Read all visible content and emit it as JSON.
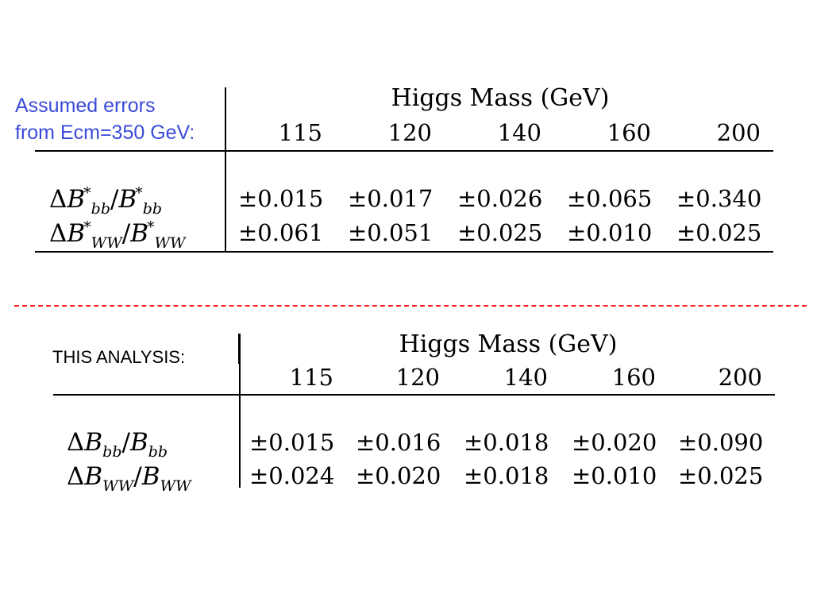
{
  "table1": {
    "caption_line1": "Assumed errors",
    "caption_line2": "from Ecm=350 GeV:",
    "caption_color": "#3b4bd8",
    "title": "Higgs Mass (GeV)",
    "masses": [
      "115",
      "120",
      "140",
      "160",
      "200"
    ],
    "rows": [
      {
        "label_main": "B",
        "label_sub": "bb",
        "values": [
          "±0.015",
          "±0.017",
          "±0.026",
          "±0.065",
          "±0.340"
        ]
      },
      {
        "label_main": "B",
        "label_sub": "WW",
        "values": [
          "±0.061",
          "±0.051",
          "±0.025",
          "±0.010",
          "±0.025"
        ]
      }
    ]
  },
  "separator_color": "#ff1a1a",
  "table2": {
    "caption": "THIS ANALYSIS:",
    "title": "Higgs Mass (GeV)",
    "masses": [
      "115",
      "120",
      "140",
      "160",
      "200"
    ],
    "rows": [
      {
        "label_main": "B",
        "label_sub": "bb",
        "values": [
          "±0.015",
          "±0.016",
          "±0.018",
          "±0.020",
          "±0.090"
        ]
      },
      {
        "label_main": "B",
        "label_sub": "WW",
        "values": [
          "±0.024",
          "±0.020",
          "±0.018",
          "±0.010",
          "±0.025"
        ]
      }
    ]
  }
}
